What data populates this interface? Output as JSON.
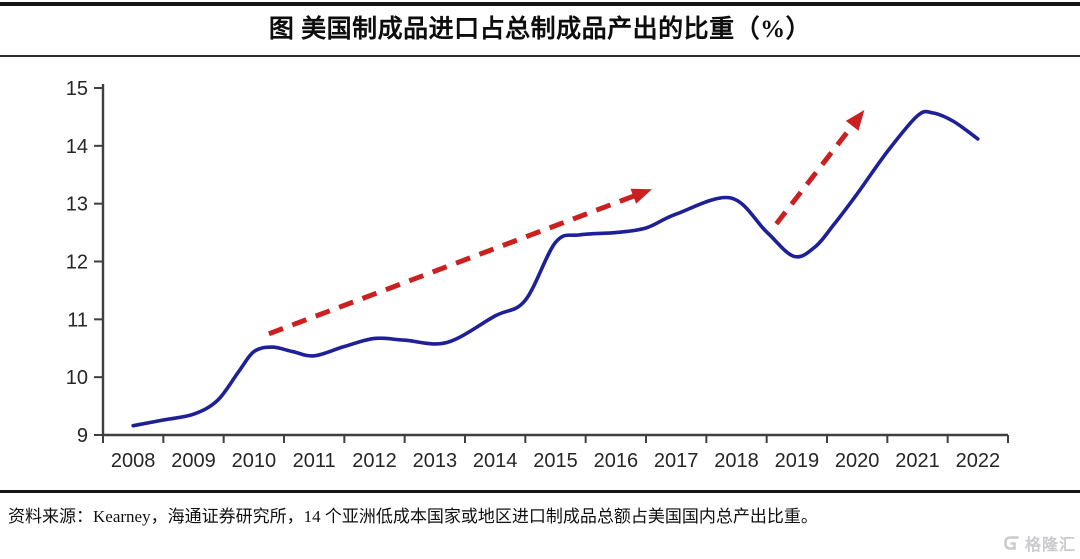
{
  "header": {
    "title": "图 美国制成品进口占总制成品产出的比重（%）"
  },
  "footer": {
    "source": "资料来源：Kearney，海通证券研究所，14 个亚洲低成本国家或地区进口制成品总额占美国国内总产出比重。",
    "logo_text": "格隆汇"
  },
  "colors": {
    "line": "#1e2096",
    "arrow": "#cb2020",
    "axis": "#3f3f3f",
    "tick_label": "#262626",
    "logo": "#cbcbcf"
  },
  "chart_data": {
    "type": "line",
    "title": "美国制成品进口占总制成品产出的比重（%）",
    "xlabel": "",
    "ylabel": "",
    "xlim": [
      2007.5,
      2022.5
    ],
    "ylim": [
      9,
      15
    ],
    "grid": false,
    "legend_position": "none",
    "x_tick_labels": [
      "2008",
      "2009",
      "2010",
      "2011",
      "2012",
      "2013",
      "2014",
      "2015",
      "2016",
      "2017",
      "2018",
      "2019",
      "2020",
      "2021",
      "2022"
    ],
    "y_ticks": [
      9,
      10,
      11,
      12,
      13,
      14,
      15
    ],
    "series": [
      {
        "name": "美国制成品进口占总制成品产出的比重",
        "color": "#1e2096",
        "style": "solid",
        "points": [
          [
            2008.0,
            9.16
          ],
          [
            2008.5,
            9.26
          ],
          [
            2009.0,
            9.36
          ],
          [
            2009.4,
            9.6
          ],
          [
            2009.75,
            10.1
          ],
          [
            2010.0,
            10.44
          ],
          [
            2010.3,
            10.52
          ],
          [
            2010.65,
            10.44
          ],
          [
            2011.0,
            10.37
          ],
          [
            2011.5,
            10.53
          ],
          [
            2012.0,
            10.67
          ],
          [
            2012.5,
            10.64
          ],
          [
            2013.2,
            10.6
          ],
          [
            2014.0,
            11.06
          ],
          [
            2014.5,
            11.33
          ],
          [
            2015.0,
            12.33
          ],
          [
            2015.4,
            12.46
          ],
          [
            2016.0,
            12.5
          ],
          [
            2016.5,
            12.58
          ],
          [
            2017.0,
            12.82
          ],
          [
            2017.9,
            13.1
          ],
          [
            2018.5,
            12.51
          ],
          [
            2018.95,
            12.09
          ],
          [
            2019.3,
            12.25
          ],
          [
            2019.6,
            12.62
          ],
          [
            2020.0,
            13.17
          ],
          [
            2020.5,
            13.9
          ],
          [
            2021.0,
            14.52
          ],
          [
            2021.25,
            14.57
          ],
          [
            2021.6,
            14.42
          ],
          [
            2022.0,
            14.12
          ]
        ]
      }
    ],
    "annotations": [
      {
        "type": "arrow",
        "style": "dashed",
        "color": "#cb2020",
        "from": [
          2010.25,
          10.75
        ],
        "to": [
          2016.6,
          13.25
        ]
      },
      {
        "type": "arrow",
        "style": "dashed",
        "color": "#cb2020",
        "from": [
          2018.66,
          12.65
        ],
        "to": [
          2020.12,
          14.62
        ]
      }
    ]
  }
}
